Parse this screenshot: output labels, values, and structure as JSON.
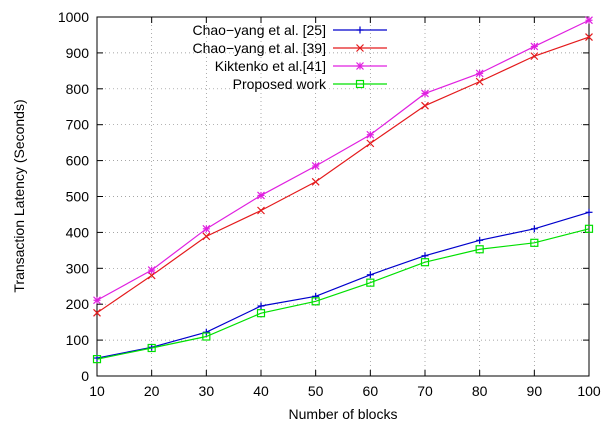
{
  "chart_data": {
    "type": "line",
    "xlabel": "Number of blocks",
    "ylabel": "Transaction Latency (Seconds)",
    "xlim": [
      10,
      100
    ],
    "ylim": [
      0,
      1000
    ],
    "x_ticks": [
      "10",
      "20",
      "30",
      "40",
      "50",
      "60",
      "70",
      "80",
      "90",
      "100"
    ],
    "y_ticks": [
      "0",
      "100",
      "200",
      "300",
      "400",
      "500",
      "600",
      "700",
      "800",
      "900",
      "1000"
    ],
    "grid": true,
    "legend_position": "top-left",
    "x": [
      10,
      20,
      30,
      40,
      50,
      60,
      70,
      80,
      90,
      100
    ],
    "series": [
      {
        "name": "Chao−yang et al. [25]",
        "color": "#0000cc",
        "marker": "plus",
        "values": [
          50,
          80,
          122,
          195,
          222,
          282,
          335,
          378,
          410,
          456
        ]
      },
      {
        "name": "Chao−yang et al. [39]",
        "color": "#e41a1c",
        "marker": "cross",
        "values": [
          176,
          280,
          389,
          461,
          541,
          648,
          753,
          820,
          891,
          944
        ]
      },
      {
        "name": "Kiktenko et al.[41]",
        "color": "#e020e0",
        "marker": "star",
        "values": [
          211,
          295,
          410,
          503,
          585,
          672,
          787,
          843,
          918,
          991
        ]
      },
      {
        "name": "Proposed work",
        "color": "#00e000",
        "marker": "square",
        "values": [
          47,
          78,
          110,
          175,
          208,
          260,
          317,
          353,
          371,
          410
        ]
      }
    ]
  }
}
